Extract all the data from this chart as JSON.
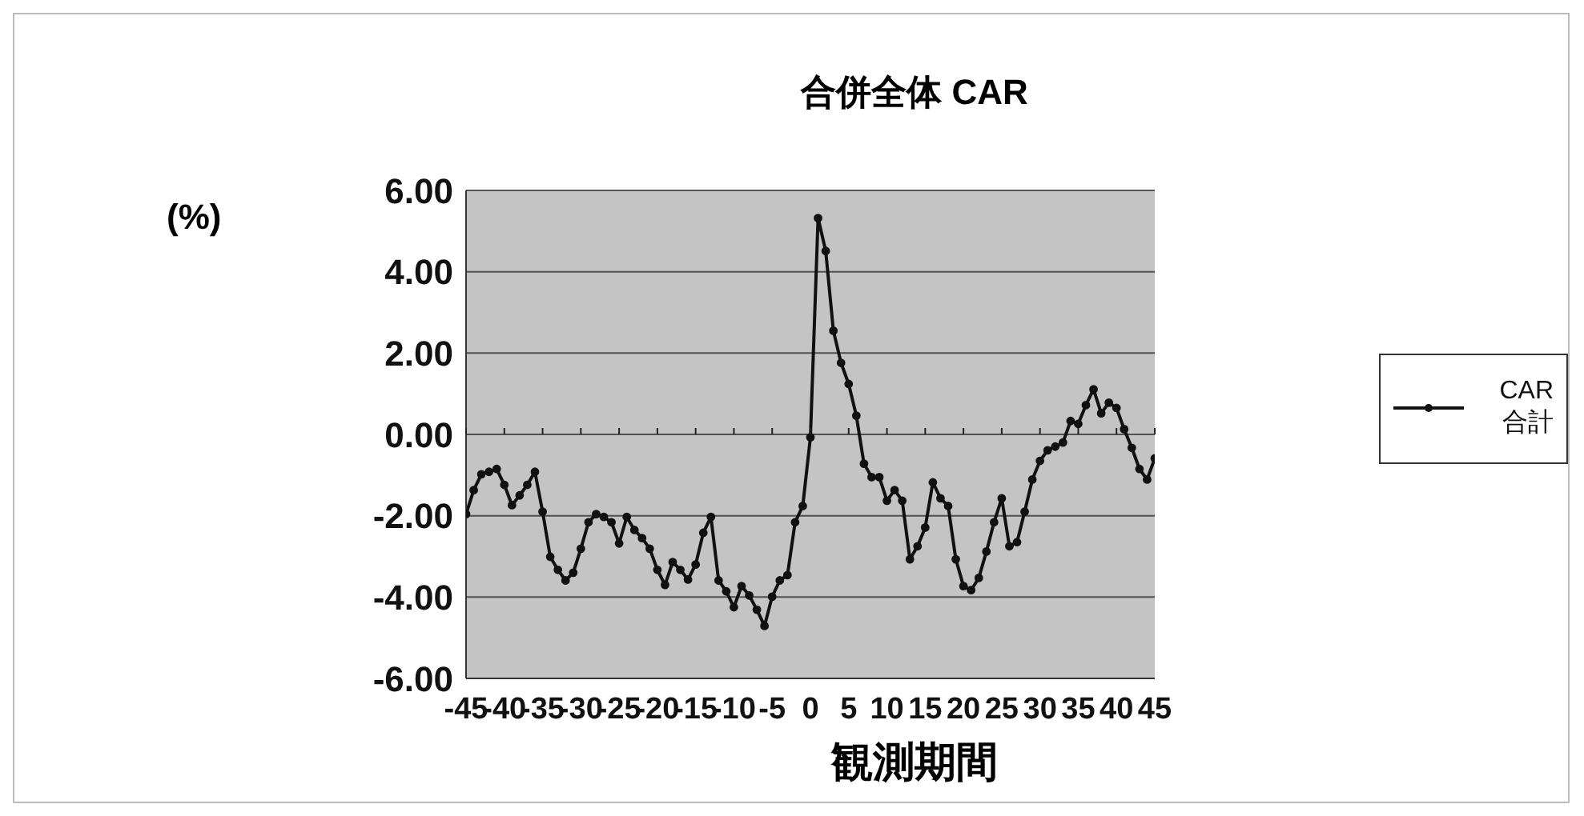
{
  "chart_data": {
    "type": "line",
    "title": "合併全体 CAR",
    "xlabel": "観測期間",
    "ylabel": "(%)",
    "x": [
      -45,
      -44,
      -43,
      -42,
      -41,
      -40,
      -39,
      -38,
      -37,
      -36,
      -35,
      -34,
      -33,
      -32,
      -31,
      -30,
      -29,
      -28,
      -27,
      -26,
      -25,
      -24,
      -23,
      -22,
      -21,
      -20,
      -19,
      -18,
      -17,
      -16,
      -15,
      -14,
      -13,
      -12,
      -11,
      -10,
      -9,
      -8,
      -7,
      -6,
      -5,
      -4,
      -3,
      -2,
      -1,
      0,
      1,
      2,
      3,
      4,
      5,
      6,
      7,
      8,
      9,
      10,
      11,
      12,
      13,
      14,
      15,
      16,
      17,
      18,
      19,
      20,
      21,
      22,
      23,
      24,
      25,
      26,
      27,
      28,
      29,
      30,
      31,
      32,
      33,
      34,
      35,
      36,
      37,
      38,
      39,
      40,
      41,
      42,
      43,
      44,
      45
    ],
    "series": [
      {
        "name": "CAR 合計",
        "color": "#111111",
        "values": [
          -1.96,
          -1.37,
          -0.98,
          -0.92,
          -0.85,
          -1.24,
          -1.74,
          -1.5,
          -1.24,
          -0.92,
          -1.9,
          -3.01,
          -3.33,
          -3.59,
          -3.4,
          -2.81,
          -2.16,
          -1.96,
          -2.03,
          -2.16,
          -2.68,
          -2.03,
          -2.35,
          -2.55,
          -2.81,
          -3.33,
          -3.7,
          -3.14,
          -3.33,
          -3.57,
          -3.2,
          -2.42,
          -2.03,
          -3.59,
          -3.86,
          -4.25,
          -3.73,
          -3.96,
          -4.31,
          -4.71,
          -3.99,
          -3.59,
          -3.46,
          -2.16,
          -1.76,
          -0.07,
          5.32,
          4.51,
          2.55,
          1.76,
          1.24,
          0.46,
          -0.72,
          -1.05,
          -1.05,
          -1.63,
          -1.37,
          -1.63,
          -3.07,
          -2.75,
          -2.29,
          -1.18,
          -1.57,
          -1.76,
          -3.07,
          -3.73,
          -3.83,
          -3.53,
          -2.88,
          -2.16,
          -1.57,
          -2.75,
          -2.65,
          -1.9,
          -1.11,
          -0.65,
          -0.39,
          -0.3,
          -0.2,
          0.33,
          0.26,
          0.72,
          1.11,
          0.52,
          0.78,
          0.65,
          0.13,
          -0.33,
          -0.85,
          -1.11,
          -0.59
        ]
      }
    ],
    "xlim": [
      -45,
      45
    ],
    "xticks": [
      -45,
      -40,
      -35,
      -30,
      -25,
      -20,
      -15,
      -10,
      -5,
      0,
      5,
      10,
      15,
      20,
      25,
      30,
      35,
      40,
      45
    ],
    "ylim": [
      -6,
      6
    ],
    "yticks": [
      {
        "value": 6,
        "label": "6.00"
      },
      {
        "value": 4,
        "label": "4.00"
      },
      {
        "value": 2,
        "label": "2.00"
      },
      {
        "value": 0,
        "label": "0.00"
      },
      {
        "value": -2,
        "label": "-2.00"
      },
      {
        "value": -4,
        "label": "-4.00"
      },
      {
        "value": -6,
        "label": "-6.00"
      }
    ],
    "grid": "y",
    "legend": "right",
    "marker": "circle",
    "line_style": "solid"
  }
}
